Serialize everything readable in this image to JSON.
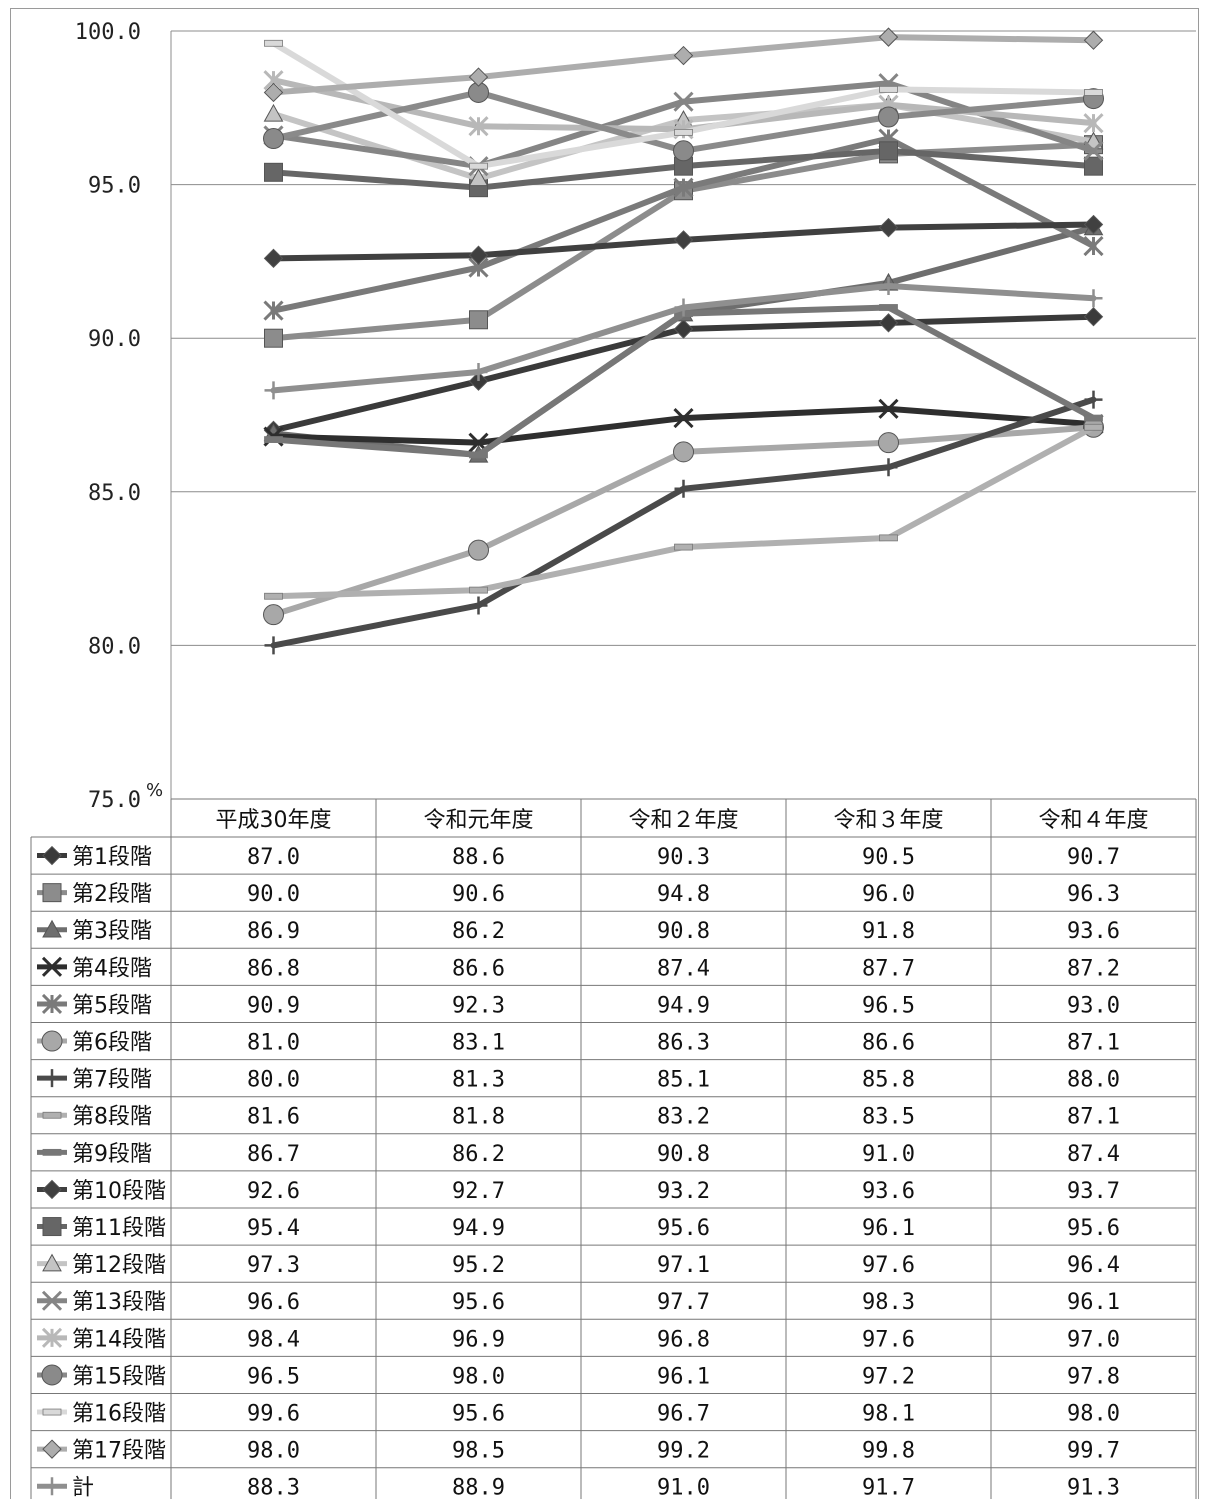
{
  "chart_data": {
    "type": "line",
    "title": "",
    "xlabel": "",
    "ylabel": "",
    "y_unit": "%",
    "ylim": [
      75.0,
      100.0
    ],
    "yticks": [
      "100.0",
      "95.0",
      "90.0",
      "85.0",
      "80.0",
      "75.0"
    ],
    "grid": true,
    "legend": "data-table-below",
    "categories": [
      "平成30年度",
      "令和元年度",
      "令和２年度",
      "令和３年度",
      "令和４年度"
    ],
    "series": [
      {
        "name": "第1段階",
        "marker": "diamond",
        "color": "#3a3a3a",
        "values": [
          87.0,
          88.6,
          90.3,
          90.5,
          90.7
        ]
      },
      {
        "name": "第2段階",
        "marker": "square",
        "color": "#8c8c8c",
        "values": [
          90.0,
          90.6,
          94.8,
          96.0,
          96.3
        ]
      },
      {
        "name": "第3段階",
        "marker": "triangle",
        "color": "#6e6e6e",
        "values": [
          86.9,
          86.2,
          90.8,
          91.8,
          93.6
        ]
      },
      {
        "name": "第4段階",
        "marker": "x",
        "color": "#2e2e2e",
        "values": [
          86.8,
          86.6,
          87.4,
          87.7,
          87.2
        ]
      },
      {
        "name": "第5段階",
        "marker": "star",
        "color": "#7a7a7a",
        "values": [
          90.9,
          92.3,
          94.9,
          96.5,
          93.0
        ]
      },
      {
        "name": "第6段階",
        "marker": "circle",
        "color": "#a8a8a8",
        "values": [
          81.0,
          83.1,
          86.3,
          86.6,
          87.1
        ]
      },
      {
        "name": "第7段階",
        "marker": "plus",
        "color": "#4a4a4a",
        "values": [
          80.0,
          81.3,
          85.1,
          85.8,
          88.0
        ]
      },
      {
        "name": "第8段階",
        "marker": "dash",
        "color": "#b0b0b0",
        "values": [
          81.6,
          81.8,
          83.2,
          83.5,
          87.1
        ]
      },
      {
        "name": "第9段階",
        "marker": "dash",
        "color": "#777777",
        "values": [
          86.7,
          86.2,
          90.8,
          91.0,
          87.4
        ]
      },
      {
        "name": "第10段階",
        "marker": "diamond",
        "color": "#404040",
        "values": [
          92.6,
          92.7,
          93.2,
          93.6,
          93.7
        ]
      },
      {
        "name": "第11段階",
        "marker": "square",
        "color": "#666666",
        "values": [
          95.4,
          94.9,
          95.6,
          96.1,
          95.6
        ]
      },
      {
        "name": "第12段階",
        "marker": "triangle",
        "color": "#c4c4c4",
        "values": [
          97.3,
          95.2,
          97.1,
          97.6,
          96.4
        ]
      },
      {
        "name": "第13段階",
        "marker": "x",
        "color": "#858585",
        "values": [
          96.6,
          95.6,
          97.7,
          98.3,
          96.1
        ]
      },
      {
        "name": "第14段階",
        "marker": "star",
        "color": "#b8b8b8",
        "values": [
          98.4,
          96.9,
          96.8,
          97.6,
          97.0
        ]
      },
      {
        "name": "第15段階",
        "marker": "circle",
        "color": "#8a8a8a",
        "values": [
          96.5,
          98.0,
          96.1,
          97.2,
          97.8
        ]
      },
      {
        "name": "第16段階",
        "marker": "dash",
        "color": "#d9d9d9",
        "values": [
          99.6,
          95.6,
          96.7,
          98.1,
          98.0
        ]
      },
      {
        "name": "第17段階",
        "marker": "diamond",
        "color": "#adadad",
        "values": [
          98.0,
          98.5,
          99.2,
          99.8,
          99.7
        ]
      },
      {
        "name": "計",
        "marker": "plus",
        "color": "#8f8f8f",
        "values": [
          88.3,
          88.9,
          91.0,
          91.7,
          91.3
        ]
      }
    ]
  }
}
